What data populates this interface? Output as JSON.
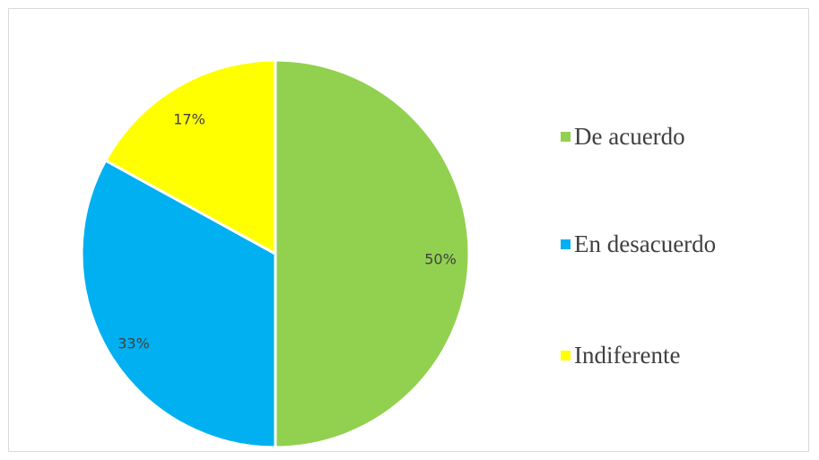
{
  "chart_data": {
    "type": "pie",
    "title": "",
    "slices": [
      {
        "label": "De acuerdo",
        "value": 50,
        "display": "50%",
        "color": "#92D050"
      },
      {
        "label": "En desacuerdo",
        "value": 33,
        "display": "33%",
        "color": "#00B0F0"
      },
      {
        "label": "Indiferente",
        "value": 17,
        "display": "17%",
        "color": "#FFFF00"
      }
    ],
    "start_angle_deg": 0,
    "direction": "clockwise",
    "legend_position": "right",
    "data_labels": "inside"
  }
}
